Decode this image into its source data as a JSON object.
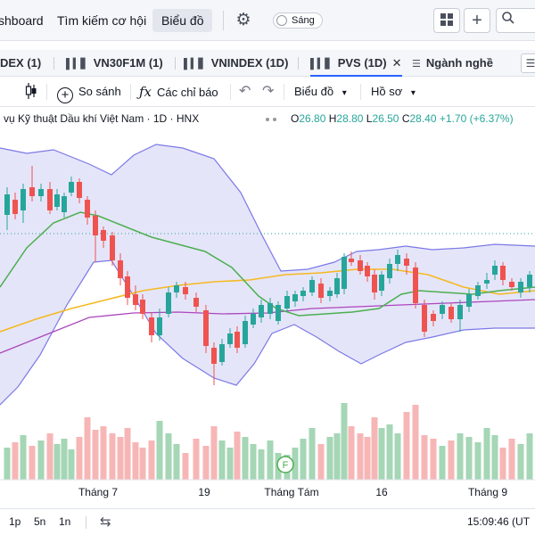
{
  "nav": {
    "items": [
      "shboard",
      "Tìm kiếm cơ hội",
      "Biểu đồ"
    ],
    "active_index": 2,
    "theme_toggle": "Sáng"
  },
  "tabs": [
    {
      "label": "DEX (1)"
    },
    {
      "label": "VN30F1M (1)"
    },
    {
      "label": "VNINDEX (1D)"
    },
    {
      "label": "PVS (1D)",
      "active": true
    },
    {
      "label": "Ngành nghề"
    }
  ],
  "toolbar": {
    "compare": "So sánh",
    "indicators": "Các chỉ báo",
    "chart_menu": "Biểu đồ",
    "profile_menu": "Hồ sơ"
  },
  "legend": {
    "name": "vụ Kỹ thuật Dầu khí Việt Nam · 1D · HNX",
    "o_label": "O",
    "o": "26.80",
    "h_label": "H",
    "h": "28.80",
    "l_label": "L",
    "l": "26.50",
    "c_label": "C",
    "c": "28.40",
    "change": "+1.70 (+6.37%)"
  },
  "chart_data": {
    "type": "candlestick",
    "x_tick_labels": [
      "Tháng 7",
      "19",
      "Tháng Tám",
      "16",
      "Tháng 9"
    ],
    "marker_label": "F",
    "colors": {
      "up": "#26a69a",
      "down": "#ef5350",
      "bollinger_band": "#7b79e6",
      "bollinger_fill": "#dcdcf7",
      "ma_short": "#4caf50",
      "ma_mid": "#f5b921",
      "ma_long": "#ab47bc",
      "volume_up": "#a5d6b5",
      "volume_down": "#f7b6b6",
      "reference_line": "#26a69a"
    }
  },
  "bottombar": {
    "timeframes": [
      "1p",
      "5n",
      "1n"
    ],
    "clock": "15:09:46 (UT"
  }
}
